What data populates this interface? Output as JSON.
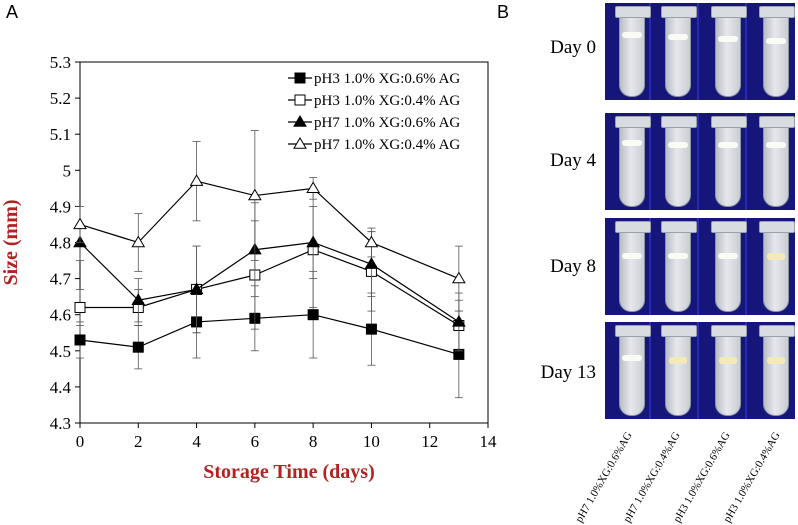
{
  "panels": {
    "a": "A",
    "b": "B"
  },
  "chart_data": {
    "type": "line",
    "title": "",
    "xlabel": "Storage Time (days)",
    "ylabel": "Size (mm)",
    "xlim": [
      0,
      14
    ],
    "ylim": [
      4.3,
      5.3
    ],
    "xticks": [
      0,
      2,
      4,
      6,
      8,
      10,
      12,
      14
    ],
    "yticks": [
      4.3,
      4.4,
      4.5,
      4.6,
      4.7,
      4.8,
      4.9,
      5.0,
      5.1,
      5.2,
      5.3
    ],
    "ytick_labels": [
      "4.3",
      "4.4",
      "4.5",
      "4.6",
      "4.7",
      "4.8",
      "4.9",
      "5",
      "5.1",
      "5.2",
      "5.3"
    ],
    "grid": false,
    "legend_position": "top-right",
    "axis_label_color": "#b22222",
    "x": [
      0,
      2,
      4,
      6,
      8,
      10,
      13
    ],
    "series": [
      {
        "name": "pH3 1.0% XG:0.6% AG",
        "marker": "square-filled",
        "values": [
          4.53,
          4.51,
          4.58,
          4.59,
          4.6,
          4.56,
          4.49
        ],
        "errors": [
          0.05,
          0.06,
          0.1,
          0.09,
          0.12,
          0.1,
          0.12
        ]
      },
      {
        "name": "pH3 1.0% XG:0.4% AG",
        "marker": "square-open",
        "values": [
          4.62,
          4.62,
          4.67,
          4.71,
          4.78,
          4.72,
          4.57
        ],
        "errors": [
          0.05,
          0.05,
          0.12,
          0.15,
          0.16,
          0.11,
          0.07
        ]
      },
      {
        "name": "pH7 1.0% XG:0.6% AG",
        "marker": "triangle-filled",
        "values": [
          4.8,
          4.64,
          4.67,
          4.78,
          4.8,
          4.74,
          4.58
        ],
        "errors": [
          0.05,
          0.06,
          0.12,
          0.13,
          0.1,
          0.09,
          0.08
        ]
      },
      {
        "name": "pH7 1.0% XG:0.4% AG",
        "marker": "triangle-open",
        "values": [
          4.85,
          4.8,
          4.97,
          4.93,
          4.95,
          4.8,
          4.7
        ],
        "errors": [
          0.05,
          0.08,
          0.11,
          0.18,
          0.03,
          0.04,
          0.09
        ]
      }
    ]
  },
  "photos": {
    "days": [
      "Day 0",
      "Day 4",
      "Day 8",
      "Day 13"
    ],
    "samples": [
      "pH7 1.0%XG:0.6%AG",
      "pH7 1.0%XG:0.4%AG",
      "pH3 1.0%XG:0.6%AG",
      "pH3 1.0%XG:0.4%AG"
    ],
    "rack_color": "#15157a"
  }
}
